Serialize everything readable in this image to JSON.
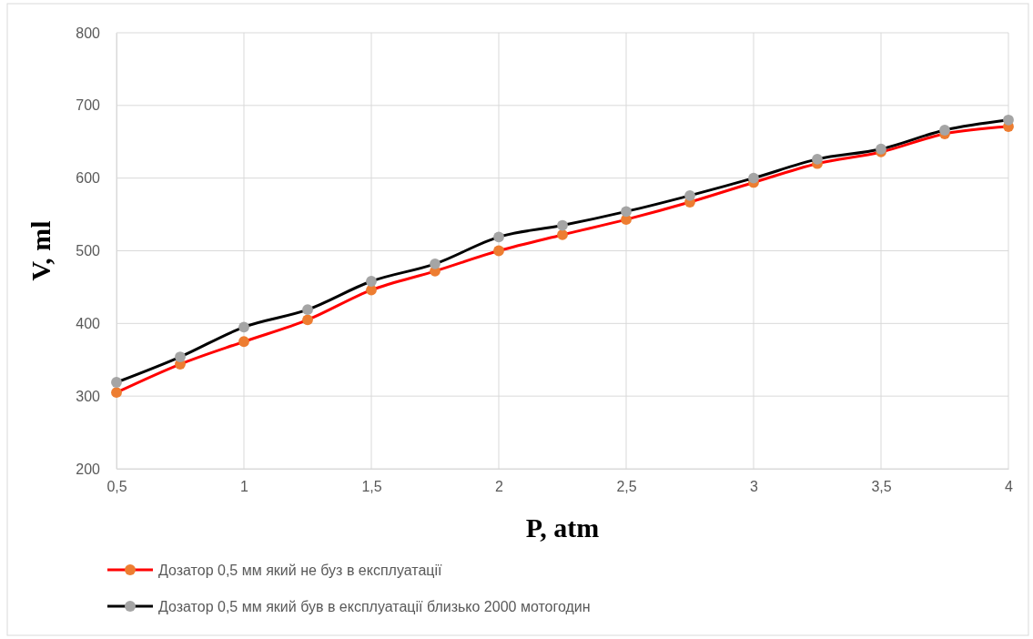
{
  "chart_data": {
    "type": "line",
    "xlabel": "P, atm",
    "ylabel": "V, ml",
    "x": [
      0.5,
      0.75,
      1,
      1.25,
      1.5,
      1.75,
      2,
      2.25,
      2.5,
      2.75,
      3,
      3.25,
      3.5,
      3.75,
      4
    ],
    "series": [
      {
        "name": "Дозатор 0,5 мм який не буз в експлуатації",
        "color": "#ff0000",
        "colors": [
          "#ed7d31",
          "#ed7d31",
          "#ed7d31",
          "#ed7d31",
          "#ed7d31",
          "#ed7d31",
          "#ed7d31",
          "#ed7d31",
          "#ed7d31",
          "#ed7d31",
          "#ed7d31",
          "#ed7d31",
          "#ed7d31",
          "#ed7d31",
          "#ed7d31"
        ],
        "values": [
          305,
          344,
          375,
          405,
          446,
          472,
          500,
          522,
          543,
          567,
          594,
          620,
          636,
          661,
          671
        ]
      },
      {
        "name": "Дозатор 0,5 мм який був в експлуатації близько 2000 мотогодин",
        "color": "#000000",
        "colors": [
          "#a5a5a5",
          "#a5a5a5",
          "#a5a5a5",
          "#a5a5a5",
          "#a5a5a5",
          "#a5a5a5",
          "#a5a5a5",
          "#a5a5a5",
          "#a5a5a5",
          "#a5a5a5",
          "#a5a5a5",
          "#a5a5a5",
          "#a5a5a5",
          "#a5a5a5",
          "#a5a5a5"
        ],
        "values": [
          319,
          354,
          395,
          419,
          458,
          482,
          519,
          535,
          554,
          576,
          600,
          626,
          640,
          666,
          680
        ]
      }
    ],
    "xlim": [
      0.5,
      4
    ],
    "xticks": [
      {
        "value": 0.5,
        "label": "0,5"
      },
      1,
      {
        "value": 1.5,
        "label": "1,5"
      },
      2,
      {
        "value": 2.5,
        "label": "2,5"
      },
      3,
      {
        "value": 3.5,
        "label": "3,5"
      },
      4
    ],
    "ylim": [
      200,
      800
    ],
    "yticks": [
      200,
      300,
      400,
      500,
      600,
      700,
      800
    ],
    "grid": true,
    "legend": "bottom",
    "marker": "circle",
    "line_style": "solid"
  }
}
